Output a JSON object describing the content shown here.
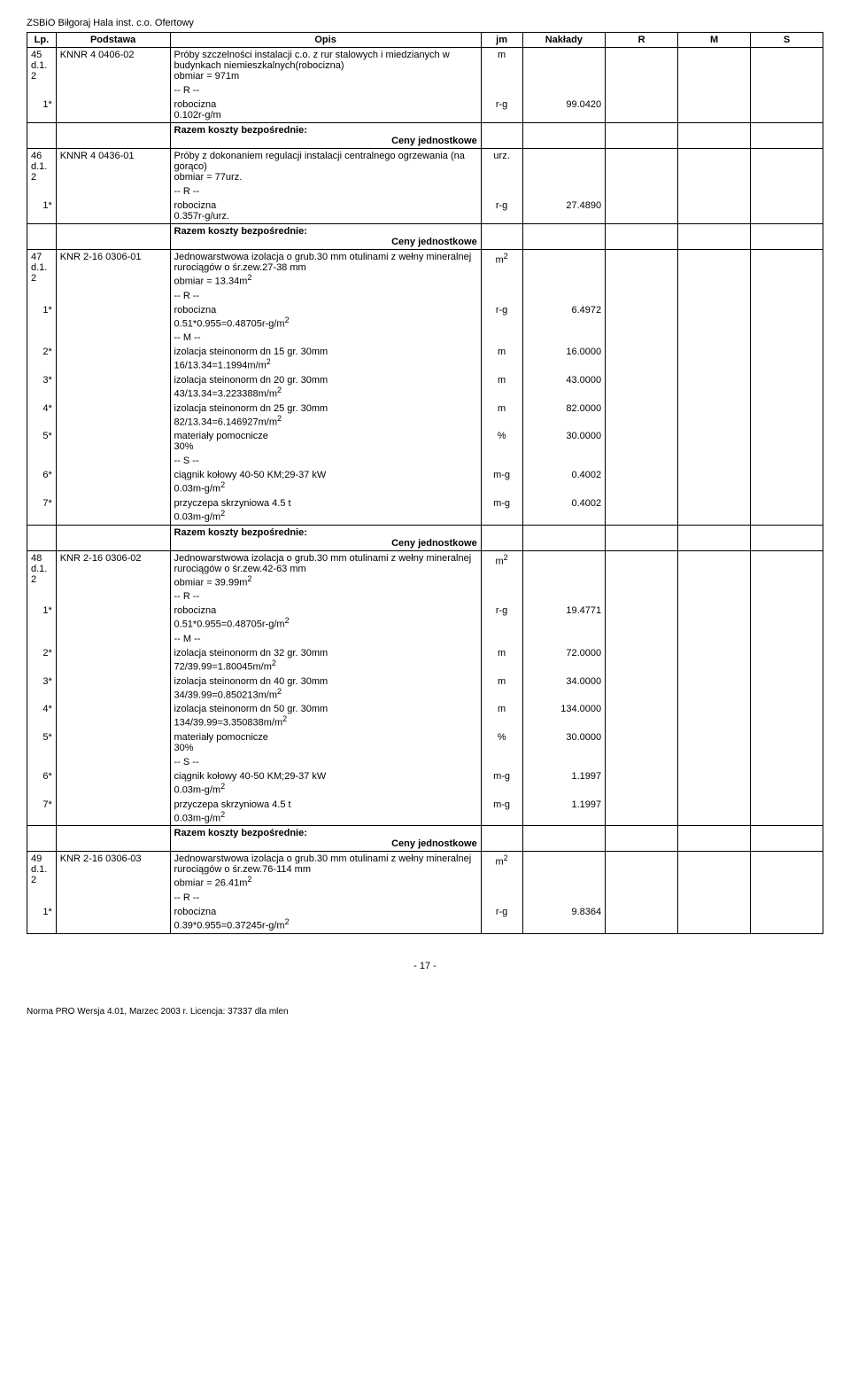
{
  "header": "ZSBiO Biłgoraj Hala inst. c.o. Ofertowy",
  "columns": {
    "lp": "Lp.",
    "pod": "Podstawa",
    "opis": "Opis",
    "jm": "jm",
    "nak": "Nakłady",
    "r": "R",
    "m": "M",
    "s": "S"
  },
  "razem": "Razem koszty bezpośrednie:",
  "ceny": "Ceny jednostkowe",
  "labels": {
    "r": "-- R --",
    "m": "-- M --",
    "s": "-- S --"
  },
  "pagenum": "- 17 -",
  "footer": "Norma PRO Wersja 4.01, Marzec 2003 r. Licencja: 37337 dla mlen",
  "rows": {
    "r45": {
      "lp": "45",
      "lp2": "d.1.2",
      "pod": "KNNR 4 0406-02",
      "opis": "Próby szczelności instalacji c.o. z rur stalowych i miedzianych w budynkach niemieszkalnych(robocizna)\nobmiar = 971m",
      "jm": "m"
    },
    "r45_r": {
      "label": "1*",
      "text": "robocizna\n0.102r-g/m",
      "jm": "r-g",
      "nak": "99.0420"
    },
    "r46": {
      "lp": "46",
      "lp2": "d.1.2",
      "pod": "KNNR 4 0436-01",
      "opis": "Próby z dokonaniem regulacji instalacji centralnego ogrzewania (na gorąco)\nobmiar = 77urz.",
      "jm": "urz."
    },
    "r46_r": {
      "label": "1*",
      "text": "robocizna\n0.357r-g/urz.",
      "jm": "r-g",
      "nak": "27.4890"
    },
    "r47": {
      "lp": "47",
      "lp2": "d.1.2",
      "pod": "KNR 2-16 0306-01",
      "opis": "Jednowarstwowa izolacja o grub.30 mm otulinami z wełny mineralnej rurociągów o śr.zew.27-38 mm\nobmiar = 13.34m²",
      "jm": "m²"
    },
    "r47_r": {
      "label": "1*",
      "text": "robocizna\n0.51*0.955=0.48705r-g/m²",
      "jm": "r-g",
      "nak": "6.4972"
    },
    "r47_m2": {
      "label": "2*",
      "text": "izolacja steinonorm dn 15 gr. 30mm\n16/13.34=1.1994m/m²",
      "jm": "m",
      "nak": "16.0000"
    },
    "r47_m3": {
      "label": "3*",
      "text": "izolacja steinonorm dn 20 gr. 30mm\n43/13.34=3.223388m/m²",
      "jm": "m",
      "nak": "43.0000"
    },
    "r47_m4": {
      "label": "4*",
      "text": "izolacja steinonorm dn 25 gr. 30mm\n82/13.34=6.146927m/m²",
      "jm": "m",
      "nak": "82.0000"
    },
    "r47_m5": {
      "label": "5*",
      "text": "materiały pomocnicze\n30%",
      "jm": "%",
      "nak": "30.0000"
    },
    "r47_s6": {
      "label": "6*",
      "text": "ciągnik kołowy 40-50 KM;29-37 kW\n0.03m-g/m²",
      "jm": "m-g",
      "nak": "0.4002"
    },
    "r47_s7": {
      "label": "7*",
      "text": "przyczepa skrzyniowa 4.5 t\n0.03m-g/m²",
      "jm": "m-g",
      "nak": "0.4002"
    },
    "r48": {
      "lp": "48",
      "lp2": "d.1.2",
      "pod": "KNR 2-16 0306-02",
      "opis": "Jednowarstwowa izolacja o grub.30 mm otulinami z wełny mineralnej rurociągów o śr.zew.42-63 mm\nobmiar = 39.99m²",
      "jm": "m²"
    },
    "r48_r": {
      "label": "1*",
      "text": "robocizna\n0.51*0.955=0.48705r-g/m²",
      "jm": "r-g",
      "nak": "19.4771"
    },
    "r48_m2": {
      "label": "2*",
      "text": "izolacja steinonorm dn 32 gr. 30mm\n72/39.99=1.80045m/m²",
      "jm": "m",
      "nak": "72.0000"
    },
    "r48_m3": {
      "label": "3*",
      "text": "izolacja steinonorm dn 40 gr. 30mm\n34/39.99=0.850213m/m²",
      "jm": "m",
      "nak": "34.0000"
    },
    "r48_m4": {
      "label": "4*",
      "text": "izolacja steinonorm dn 50 gr. 30mm\n134/39.99=3.350838m/m²",
      "jm": "m",
      "nak": "134.0000"
    },
    "r48_m5": {
      "label": "5*",
      "text": "materiały pomocnicze\n30%",
      "jm": "%",
      "nak": "30.0000"
    },
    "r48_s6": {
      "label": "6*",
      "text": "ciągnik kołowy 40-50 KM;29-37 kW\n0.03m-g/m²",
      "jm": "m-g",
      "nak": "1.1997"
    },
    "r48_s7": {
      "label": "7*",
      "text": "przyczepa skrzyniowa 4.5 t\n0.03m-g/m²",
      "jm": "m-g",
      "nak": "1.1997"
    },
    "r49": {
      "lp": "49",
      "lp2": "d.1.2",
      "pod": "KNR 2-16 0306-03",
      "opis": "Jednowarstwowa izolacja o grub.30 mm otulinami z wełny mineralnej rurociągów o śr.zew.76-114 mm\nobmiar = 26.41m²",
      "jm": "m²"
    },
    "r49_r": {
      "label": "1*",
      "text": "robocizna\n0.39*0.955=0.37245r-g/m²",
      "jm": "r-g",
      "nak": "9.8364"
    }
  }
}
